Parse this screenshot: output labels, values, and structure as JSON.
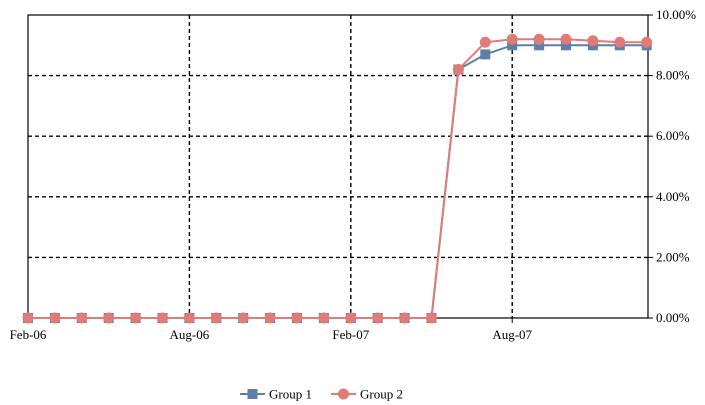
{
  "chart_data": {
    "type": "line",
    "title": "",
    "xlabel": "",
    "ylabel": "",
    "x": [
      "Feb-06",
      "Mar-06",
      "Apr-06",
      "May-06",
      "Jun-06",
      "Jul-06",
      "Aug-06",
      "Sep-06",
      "Oct-06",
      "Nov-06",
      "Dec-06",
      "Jan-07",
      "Feb-07",
      "Mar-07",
      "Apr-07",
      "May-07",
      "Jun-07",
      "Jul-07",
      "Aug-07",
      "Sep-07",
      "Oct-07",
      "Nov-07",
      "Dec-07",
      "Jan-08"
    ],
    "x_tick_labels": [
      "Feb-06",
      "Aug-06",
      "Feb-07",
      "Aug-07"
    ],
    "y_tick_labels": [
      "0.00%",
      "2.00%",
      "4.00%",
      "6.00%",
      "8.00%",
      "10.00%"
    ],
    "ylim": [
      0,
      10
    ],
    "y_unit": "%",
    "y_axis_side": "right",
    "grid": "dashed",
    "legend_position": "bottom",
    "series": [
      {
        "name": "Group 1",
        "color": "#5f7fa8",
        "marker": "square",
        "values": [
          0,
          0,
          0,
          0,
          0,
          0,
          0,
          0,
          0,
          0,
          0,
          0,
          0,
          0,
          0,
          0,
          8.2,
          8.7,
          9.0,
          9.0,
          9.0,
          9.0,
          9.0,
          9.0
        ]
      },
      {
        "name": "Group 2",
        "color": "#e07b78",
        "marker": "circle",
        "values": [
          0,
          0,
          0,
          0,
          0,
          0,
          0,
          0,
          0,
          0,
          0,
          0,
          0,
          0,
          0,
          0,
          8.2,
          9.1,
          9.2,
          9.2,
          9.2,
          9.15,
          9.1,
          9.1
        ]
      }
    ]
  }
}
